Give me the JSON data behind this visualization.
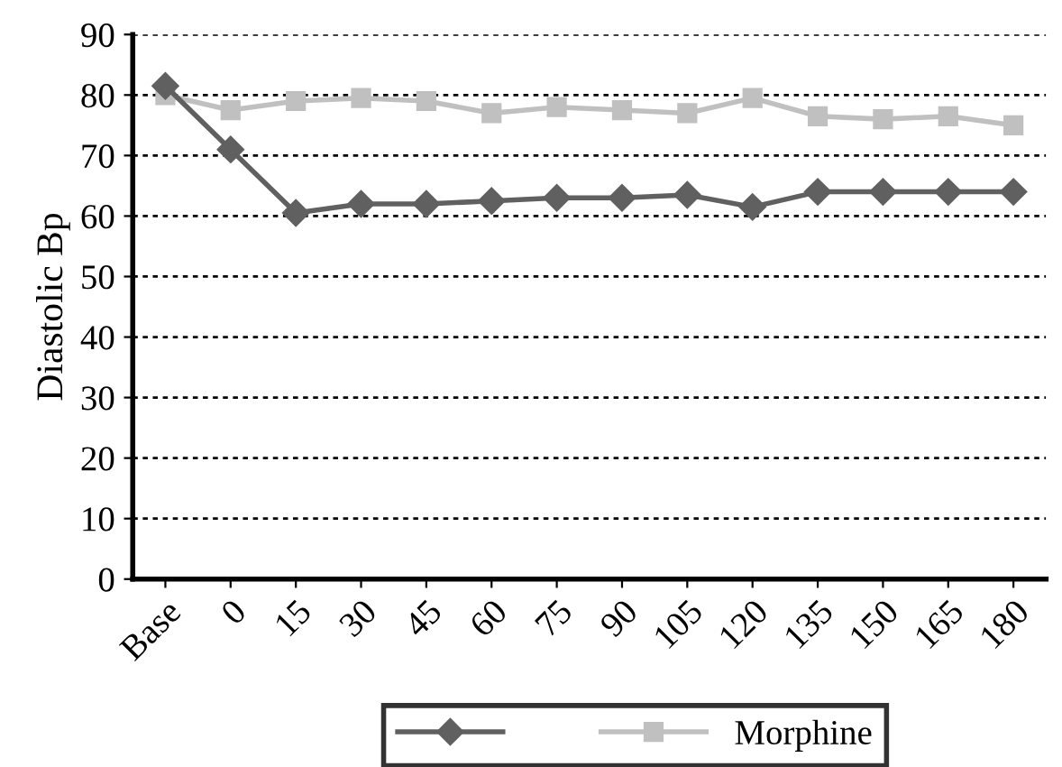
{
  "chart_data": {
    "type": "line",
    "ylabel": "Diastolic Bp",
    "categories": [
      "Base",
      "0",
      "15",
      "30",
      "45",
      "60",
      "75",
      "90",
      "105",
      "120",
      "135",
      "150",
      "165",
      "180"
    ],
    "series": [
      {
        "color": "#606060",
        "marker": "diamond",
        "values": [
          81.5,
          71,
          60.5,
          62,
          62,
          62.5,
          63,
          63,
          63.5,
          61.5,
          64,
          64,
          64,
          64
        ]
      },
      {
        "name": "Morphine",
        "color": "#c0c0c0",
        "marker": "square",
        "values": [
          80,
          77.5,
          79,
          79.5,
          79,
          77,
          78,
          77.5,
          77,
          79.5,
          76.5,
          76,
          76.5,
          75
        ]
      }
    ],
    "ylim": [
      0,
      90
    ],
    "yticks": [
      0,
      10,
      20,
      30,
      40,
      50,
      60,
      70,
      80,
      90
    ],
    "grid": "y",
    "legend": "bottom",
    "line_style": "solid"
  }
}
